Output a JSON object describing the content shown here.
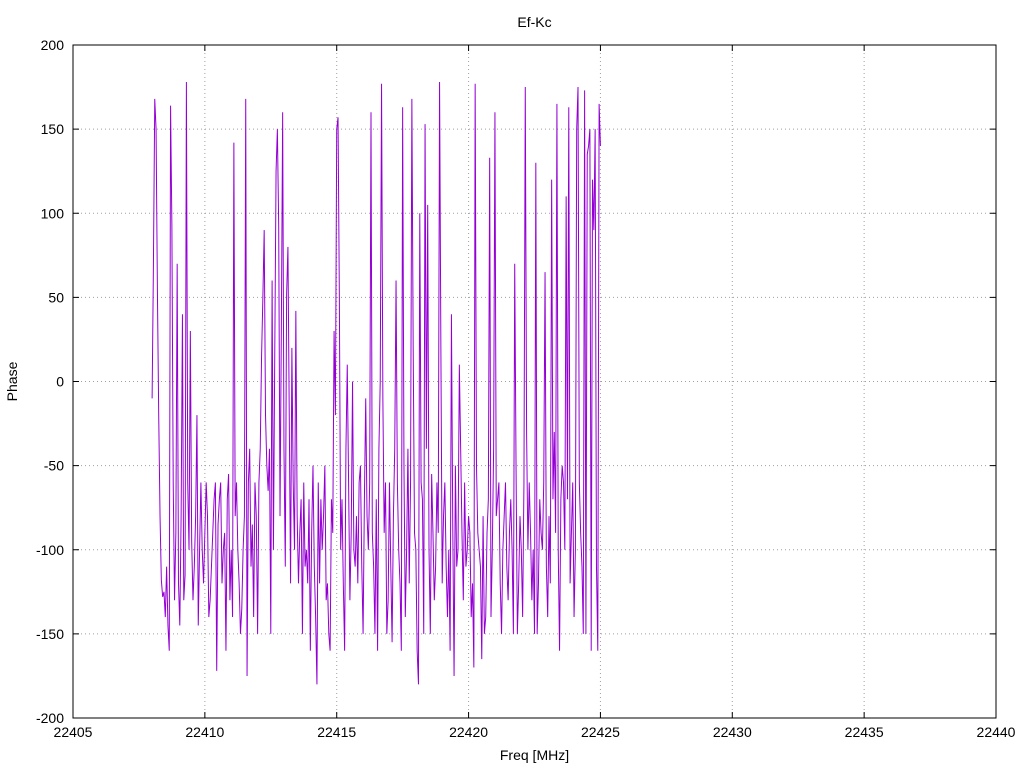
{
  "chart_data": {
    "type": "line",
    "title": "Ef-Kc",
    "xlabel": "Freq [MHz]",
    "ylabel": "Phase",
    "xlim": [
      22405,
      22440
    ],
    "ylim": [
      -200,
      200
    ],
    "xticks": [
      22405,
      22410,
      22415,
      22420,
      22425,
      22430,
      22435,
      22440
    ],
    "yticks": [
      -200,
      -150,
      -100,
      -50,
      0,
      50,
      100,
      150,
      200
    ],
    "grid": true,
    "legend": "none",
    "colors": {
      "series": "#9400d3",
      "grid": "#a0a0a0",
      "axes": "#000000"
    },
    "series": [
      {
        "x_start": 22408.0,
        "x_step": 0.05,
        "values": [
          -10,
          70,
          168,
          150,
          55,
          -20,
          -80,
          -118,
          -128,
          -125,
          -140,
          -110,
          -145,
          -160,
          164,
          92,
          -60,
          -130,
          -90,
          70,
          -120,
          -145,
          -80,
          40,
          -130,
          -115,
          178,
          -60,
          -100,
          30,
          -95,
          -130,
          -110,
          -80,
          -20,
          -145,
          -100,
          -60,
          -100,
          -120,
          -90,
          -60,
          -80,
          -140,
          -130,
          -110,
          -90,
          -70,
          -60,
          -172,
          -85,
          -70,
          -60,
          -120,
          -100,
          -90,
          -160,
          -70,
          -55,
          -130,
          -100,
          -140,
          142,
          -80,
          -60,
          -100,
          -120,
          -150,
          -135,
          -100,
          -80,
          168,
          -175,
          -60,
          -40,
          -110,
          -85,
          -140,
          -60,
          -80,
          -150,
          -60,
          -40,
          15,
          50,
          90,
          -20,
          -50,
          -65,
          -40,
          -150,
          60,
          -100,
          15,
          125,
          150,
          92,
          -80,
          30,
          160,
          -40,
          -110,
          52,
          80,
          -20,
          -120,
          20,
          -60,
          -100,
          42,
          -80,
          -120,
          -90,
          -70,
          -150,
          -60,
          -110,
          -100,
          -120,
          -70,
          -160,
          -90,
          -50,
          -110,
          -140,
          -180,
          -60,
          -120,
          -70,
          -100,
          -80,
          -50,
          -130,
          -120,
          -150,
          -160,
          -70,
          -90,
          30,
          -20,
          150,
          157,
          50,
          -100,
          -70,
          -120,
          -160,
          -40,
          10,
          -60,
          -130,
          -90,
          0,
          -100,
          -110,
          -80,
          -120,
          -60,
          -50,
          -110,
          -150,
          -70,
          -10,
          -80,
          -100,
          -60,
          160,
          -90,
          -110,
          -150,
          -70,
          -160,
          -40,
          0,
          177,
          -10,
          -90,
          -60,
          -150,
          -130,
          -60,
          -110,
          -155,
          -80,
          -40,
          60,
          -60,
          -100,
          -120,
          -160,
          163,
          -50,
          -140,
          -100,
          -40,
          -120,
          -60,
          168,
          20,
          -90,
          -100,
          -160,
          -180,
          100,
          -60,
          -70,
          -150,
          153,
          -40,
          105,
          -100,
          -150,
          -55,
          -90,
          -130,
          -110,
          -60,
          -90,
          178,
          20,
          -120,
          -80,
          -60,
          -110,
          -140,
          -100,
          -160,
          40,
          -85,
          -175,
          -50,
          -110,
          -100,
          10,
          -40,
          -90,
          -130,
          -60,
          -110,
          -100,
          -80,
          -90,
          -140,
          -120,
          -170,
          177,
          -50,
          -90,
          -100,
          -110,
          -165,
          -80,
          -150,
          -140,
          -90,
          -70,
          133,
          -140,
          -100,
          -40,
          160,
          -80,
          -70,
          -60,
          -120,
          -150,
          -100,
          -80,
          -60,
          -110,
          -130,
          -90,
          -70,
          -100,
          -150,
          70,
          -50,
          -150,
          -120,
          -80,
          -100,
          -140,
          -60,
          175,
          -30,
          -100,
          -60,
          -90,
          -130,
          -100,
          -150,
          130,
          -150,
          -120,
          -70,
          -90,
          -100,
          -60,
          65,
          -110,
          -140,
          -80,
          -120,
          120,
          -70,
          -30,
          -90,
          165,
          -100,
          -160,
          -70,
          -50,
          -60,
          -100,
          110,
          -70,
          163,
          -120,
          -90,
          -60,
          -140,
          -100,
          150,
          175,
          -60,
          -90,
          -110,
          -150,
          173,
          -150,
          135,
          140,
          150,
          -160,
          120,
          90,
          150,
          -110,
          -160,
          165,
          140
        ]
      }
    ]
  }
}
